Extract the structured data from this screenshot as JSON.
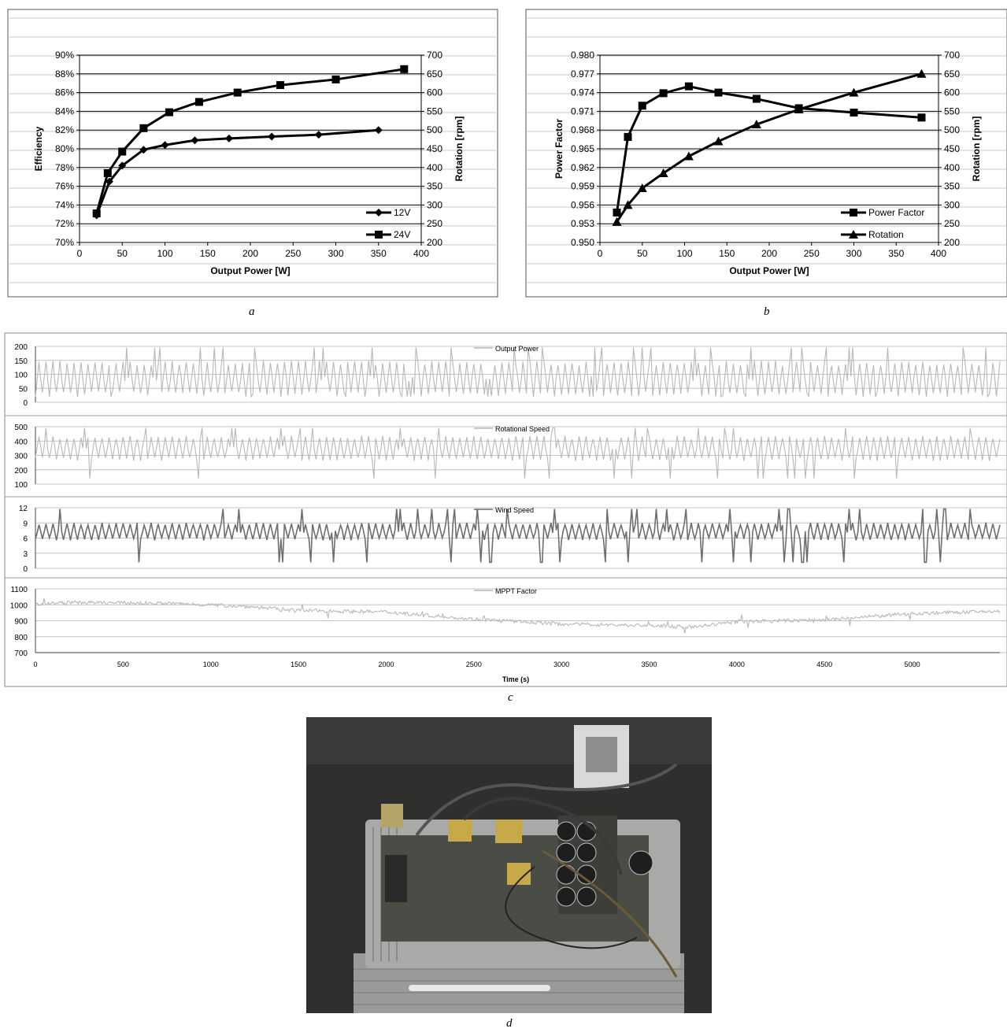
{
  "captions": {
    "a": "a",
    "b": "b",
    "c": "c",
    "d": "d"
  },
  "chart_data": [
    {
      "id": "a",
      "type": "line",
      "xlabel": "Output Power [W]",
      "ylabel": "Efficiency",
      "y2label": "Rotation [rpm]",
      "xlim": [
        0,
        400
      ],
      "xticks": [
        0,
        50,
        100,
        150,
        200,
        250,
        300,
        350,
        400
      ],
      "ylim": [
        70,
        90
      ],
      "yticks": [
        "70%",
        "72%",
        "74%",
        "76%",
        "78%",
        "80%",
        "82%",
        "84%",
        "86%",
        "88%",
        "90%"
      ],
      "y2lim": [
        200,
        700
      ],
      "y2ticks": [
        200,
        250,
        300,
        350,
        400,
        450,
        500,
        550,
        600,
        650,
        700
      ],
      "grid": true,
      "legend": "bottom-right",
      "series": [
        {
          "name": "12V",
          "marker": "diamond",
          "axis": "left",
          "x": [
            20,
            35,
            50,
            75,
            100,
            135,
            175,
            225,
            280,
            350
          ],
          "y": [
            72.9,
            76.5,
            78.2,
            79.9,
            80.4,
            80.9,
            81.1,
            81.3,
            81.5,
            82.0
          ]
        },
        {
          "name": "24V",
          "marker": "square",
          "axis": "left",
          "x": [
            20,
            33,
            50,
            75,
            105,
            140,
            185,
            235,
            300,
            380
          ],
          "y": [
            73.1,
            77.4,
            79.7,
            82.2,
            83.9,
            85.0,
            86.0,
            86.8,
            87.4,
            88.5
          ]
        }
      ]
    },
    {
      "id": "b",
      "type": "line",
      "xlabel": "Output Power [W]",
      "ylabel": "Power Factor",
      "y2label": "Rotation [rpm]",
      "xlim": [
        0,
        400
      ],
      "xticks": [
        0,
        50,
        100,
        150,
        200,
        250,
        300,
        350,
        400
      ],
      "ylim": [
        0.95,
        0.98
      ],
      "yticks": [
        "0.950",
        "0.953",
        "0.956",
        "0.959",
        "0.962",
        "0.965",
        "0.968",
        "0.971",
        "0.974",
        "0.977",
        "0.980"
      ],
      "y2lim": [
        200,
        700
      ],
      "y2ticks": [
        200,
        250,
        300,
        350,
        400,
        450,
        500,
        550,
        600,
        650,
        700
      ],
      "grid": true,
      "legend": "bottom-right",
      "series": [
        {
          "name": "Power Factor",
          "marker": "square",
          "axis": "left",
          "x": [
            20,
            33,
            50,
            75,
            105,
            140,
            185,
            235,
            300,
            380
          ],
          "y": [
            0.9548,
            0.9669,
            0.9719,
            0.9739,
            0.975,
            0.974,
            0.973,
            0.9715,
            0.9708,
            0.97
          ]
        },
        {
          "name": "Rotation",
          "marker": "triangle",
          "axis": "right",
          "x": [
            20,
            33,
            50,
            75,
            105,
            140,
            185,
            235,
            300,
            380
          ],
          "y": [
            255,
            300,
            345,
            385,
            430,
            470,
            515,
            555,
            600,
            650
          ]
        }
      ]
    },
    {
      "id": "c",
      "type": "line",
      "xlabel": "Time (s)",
      "xlim": [
        0,
        5500
      ],
      "xticks": [
        0,
        500,
        1000,
        1500,
        2000,
        2500,
        3000,
        3500,
        4000,
        4500,
        5000
      ],
      "grid": true,
      "legend": "top-center",
      "panels": [
        {
          "name": "Output Power",
          "ylim": [
            0,
            200
          ],
          "yticks": [
            0,
            50,
            100,
            150,
            200
          ],
          "color": "#b8b8b8",
          "period_s": 40,
          "low": 30,
          "high": 140
        },
        {
          "name": "Rotational Speed",
          "ylim": [
            100,
            500
          ],
          "yticks": [
            100,
            200,
            300,
            400,
            500
          ],
          "color": "#b8b8b8",
          "period_s": 40,
          "low": 275,
          "high": 425
        },
        {
          "name": "Wind Speed",
          "ylim": [
            0,
            12
          ],
          "yticks": [
            0,
            3,
            6,
            9,
            12
          ],
          "color": "#6e6e6e",
          "period_s": 40,
          "low": 5.8,
          "high": 8.8
        },
        {
          "name": "MPPT Factor",
          "ylim": [
            700,
            1100
          ],
          "yticks": [
            700,
            800,
            900,
            1000,
            1100
          ],
          "color": "#b8b8b8",
          "trend_x": [
            0,
            200,
            800,
            1200,
            1500,
            2000,
            2500,
            3000,
            3500,
            3750,
            4000,
            4500,
            5000,
            5500
          ],
          "trend_y": [
            1005,
            1015,
            1008,
            990,
            965,
            955,
            910,
            880,
            870,
            860,
            895,
            905,
            945,
            960
          ]
        }
      ]
    }
  ]
}
